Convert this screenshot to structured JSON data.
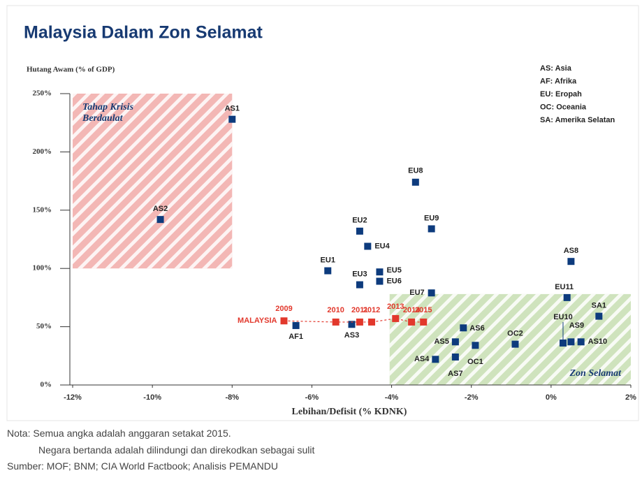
{
  "chart_data": {
    "type": "scatter",
    "title": "Malaysia Dalam Zon Selamat",
    "ylabel": "Hutang Awam (% of GDP)",
    "xlabel": "Lebihan/Defisit (% KDNK)",
    "key": [
      "AS: Asia",
      "AF: Afrika",
      "EU: Eropah",
      "OC: Oceania",
      "SA: Amerika Selatan"
    ],
    "xlim": [
      -12,
      2
    ],
    "ylim": [
      0,
      250
    ],
    "xticks": [
      {
        "value": -12,
        "label": "-12%"
      },
      {
        "value": -10,
        "label": "-10%"
      },
      {
        "value": -8,
        "label": "-8%"
      },
      {
        "value": -6,
        "label": "-6%"
      },
      {
        "value": -4,
        "label": "-4%"
      },
      {
        "value": -2,
        "label": "-2%"
      },
      {
        "value": 0,
        "label": "0%"
      },
      {
        "value": 2,
        "label": "2%"
      }
    ],
    "yticks": [
      {
        "value": 0,
        "label": "0%"
      },
      {
        "value": 50,
        "label": "50%"
      },
      {
        "value": 100,
        "label": "100%"
      },
      {
        "value": 150,
        "label": "150%"
      },
      {
        "value": 200,
        "label": "200%"
      },
      {
        "value": 250,
        "label": "250%"
      }
    ],
    "zones": [
      {
        "label": [
          "Tahap Krisis",
          "Berdaulat"
        ],
        "x": [
          -12,
          -8
        ],
        "y": [
          100,
          250
        ],
        "color": "#f3b7b5"
      },
      {
        "label": [
          "Zon Selamat"
        ],
        "x": [
          -4.05,
          2
        ],
        "y": [
          0,
          78
        ],
        "color": "#cfe3bd"
      }
    ],
    "series": [
      {
        "color": "#0d3b7d",
        "labels": [
          "AS1",
          "AS2",
          "EU8",
          "EU9",
          "EU2",
          "EU4",
          "EU1",
          "EU5",
          "EU3",
          "EU6",
          "EU7",
          "AS8",
          "EU11",
          "SA1",
          "EU10",
          "AS9",
          "AS10",
          "OC2",
          "AS6",
          "AS5",
          "OC1",
          "AS4",
          "AS7",
          "AF1",
          "AS3"
        ],
        "x": [
          -8.0,
          -9.8,
          -3.4,
          -3.0,
          -4.8,
          -4.6,
          -5.6,
          -4.3,
          -4.8,
          -4.3,
          -3.0,
          0.5,
          0.4,
          1.2,
          0.3,
          0.5,
          0.75,
          -0.9,
          -2.2,
          -2.4,
          -1.9,
          -2.9,
          -2.4,
          -6.4,
          -5.0
        ],
        "values": [
          228,
          142,
          174,
          134,
          132,
          119,
          98,
          97,
          86,
          89,
          79,
          106,
          75,
          59,
          36,
          37,
          37,
          35,
          49,
          37,
          34,
          22,
          24,
          51,
          52
        ]
      },
      {
        "name": "MALAYSIA",
        "color": "#e2382c",
        "labels": [
          "2009",
          "2010",
          "2011",
          "2012",
          "2013",
          "2014",
          "2015"
        ],
        "x": [
          -6.7,
          -5.4,
          -4.8,
          -4.5,
          -3.9,
          -3.5,
          -3.2
        ],
        "values": [
          55,
          54,
          54,
          54,
          57,
          54,
          54
        ]
      }
    ],
    "notes": [
      "Nota:  Semua angka adalah anggaran setakat 2015.",
      "Negara bertanda adalah dilindungi dan direkodkan sebagai sulit",
      "Sumber: MOF; BNM; CIA World Factbook; Analisis PEMANDU"
    ]
  }
}
